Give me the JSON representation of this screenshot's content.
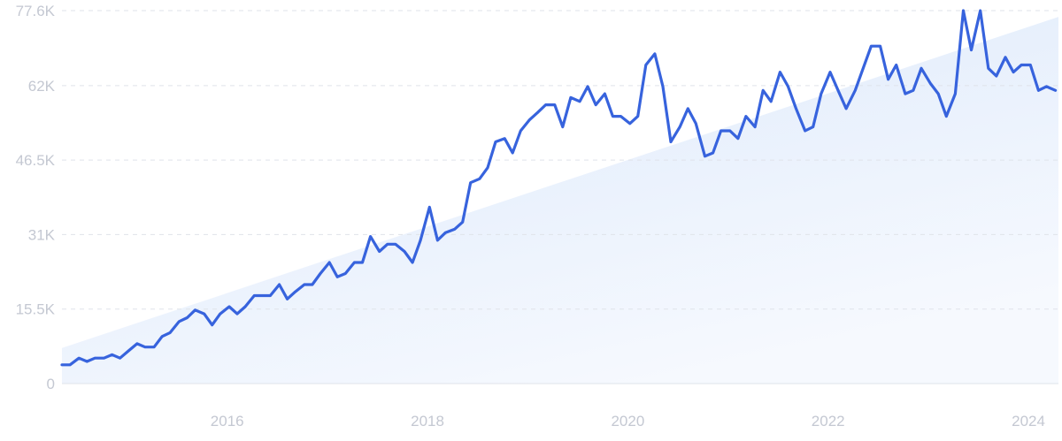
{
  "chart_data": {
    "type": "line",
    "title": "",
    "xlabel": "",
    "ylabel": "",
    "ylim": [
      0,
      77600
    ],
    "y_ticks": [
      {
        "value": 0,
        "label": "0"
      },
      {
        "value": 15500,
        "label": "15.5K"
      },
      {
        "value": 31000,
        "label": "31K"
      },
      {
        "value": 46500,
        "label": "46.5K"
      },
      {
        "value": 62000,
        "label": "62K"
      },
      {
        "value": 77600,
        "label": "77.6K"
      }
    ],
    "x_range": [
      2014.35,
      2024.3
    ],
    "x_ticks": [
      {
        "value": 2016,
        "label": "2016"
      },
      {
        "value": 2018,
        "label": "2018"
      },
      {
        "value": 2020,
        "label": "2020"
      },
      {
        "value": 2022,
        "label": "2022"
      },
      {
        "value": 2024,
        "label": "2024"
      }
    ],
    "grid": true,
    "trend": {
      "start": [
        2014.35,
        7400
      ],
      "end": [
        2024.3,
        76300
      ]
    },
    "colors": {
      "line": "#3763dd",
      "trend_fill_top": "#dbe8fb",
      "trend_fill_bottom": "#f6f9fe",
      "grid": "#dfe3ea",
      "tick_text": "#c4c8d2"
    },
    "series": [
      {
        "x": [
          2014.35,
          2014.43,
          2014.52,
          2014.6,
          2014.68,
          2014.77,
          2014.85,
          2014.93,
          2015.02,
          2015.1,
          2015.18,
          2015.27,
          2015.35,
          2015.43,
          2015.52,
          2015.6,
          2015.68,
          2015.77,
          2015.85,
          2015.93,
          2016.02,
          2016.1,
          2016.18,
          2016.27,
          2016.35,
          2016.43,
          2016.52,
          2016.6,
          2016.68,
          2016.77,
          2016.85,
          2016.93,
          2017.02,
          2017.1,
          2017.18,
          2017.27,
          2017.35,
          2017.43,
          2017.52,
          2017.6,
          2017.68,
          2017.77,
          2017.85,
          2017.93,
          2018.02,
          2018.1,
          2018.18,
          2018.27,
          2018.35,
          2018.43,
          2018.52,
          2018.6,
          2018.68,
          2018.77,
          2018.85,
          2018.93,
          2019.02,
          2019.1,
          2019.18,
          2019.27,
          2019.35,
          2019.43,
          2019.52,
          2019.6,
          2019.68,
          2019.77,
          2019.85,
          2019.93,
          2020.02,
          2020.1,
          2020.18,
          2020.27,
          2020.35,
          2020.43,
          2020.52,
          2020.6,
          2020.68,
          2020.77,
          2020.85,
          2020.93,
          2021.02,
          2021.1,
          2021.18,
          2021.27,
          2021.35,
          2021.43,
          2021.52,
          2021.6,
          2021.68,
          2021.77,
          2021.85,
          2021.93,
          2022.02,
          2022.1,
          2022.18,
          2022.27,
          2022.35,
          2022.43,
          2022.52,
          2022.6,
          2022.68,
          2022.77,
          2022.85,
          2022.93,
          2023.02,
          2023.1,
          2023.18,
          2023.27,
          2023.35,
          2023.43,
          2023.52,
          2023.6,
          2023.68,
          2023.77,
          2023.85,
          2023.93,
          2024.02,
          2024.1,
          2024.18,
          2024.27
        ],
        "values": [
          3900,
          3900,
          5300,
          4600,
          5300,
          5300,
          6000,
          5300,
          6900,
          8300,
          7600,
          7600,
          9800,
          10600,
          12900,
          13700,
          15300,
          14500,
          12200,
          14500,
          16000,
          14500,
          16000,
          18300,
          18300,
          18300,
          20600,
          17600,
          19100,
          20600,
          20600,
          22900,
          25200,
          22200,
          22900,
          25200,
          25200,
          30600,
          27500,
          29000,
          29000,
          27500,
          25200,
          29800,
          36700,
          29800,
          31400,
          32100,
          33600,
          41800,
          42600,
          44900,
          50300,
          51000,
          48000,
          52600,
          54900,
          56400,
          58000,
          58000,
          53400,
          59500,
          58700,
          61800,
          58000,
          60300,
          55600,
          55600,
          54100,
          55600,
          66300,
          68600,
          61800,
          50300,
          53400,
          57200,
          54100,
          47300,
          48000,
          52600,
          52600,
          51000,
          55600,
          53400,
          61000,
          58700,
          64800,
          61800,
          57200,
          52600,
          53400,
          60300,
          64800,
          61000,
          57200,
          61000,
          65600,
          70200,
          70200,
          63300,
          66300,
          60300,
          61000,
          65600,
          62500,
          60300,
          55600,
          60300,
          77600,
          69400,
          77600,
          65600,
          64000,
          67900,
          64800,
          66300,
          66300,
          61000,
          61800,
          61000
        ]
      }
    ]
  }
}
